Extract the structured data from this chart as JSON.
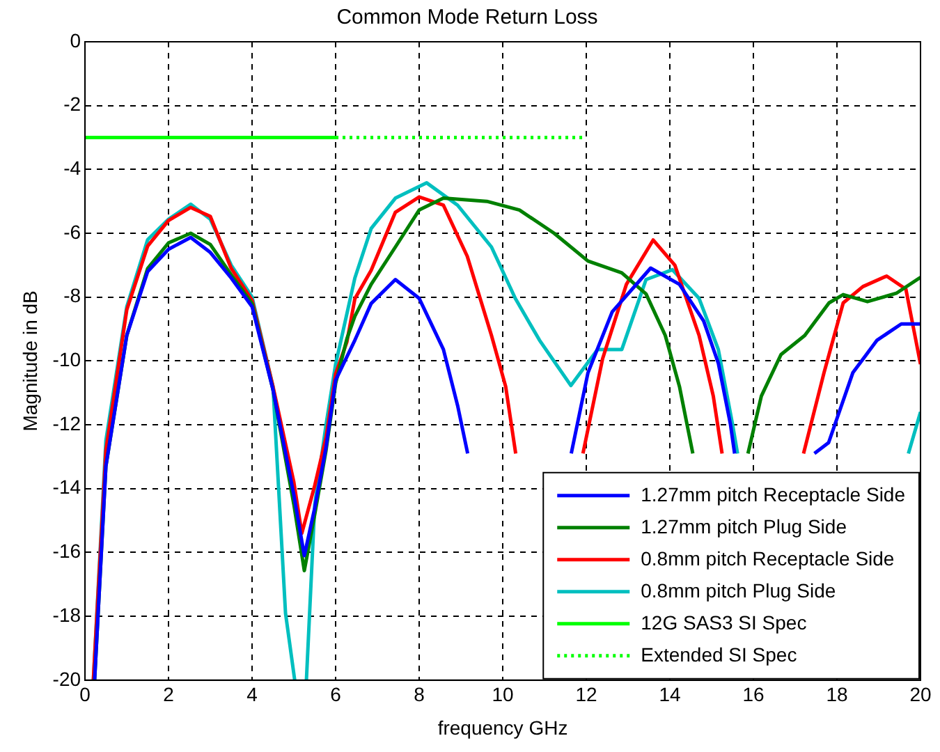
{
  "chart_data": {
    "type": "line",
    "title": "Common Mode Return Loss",
    "xlabel": "frequency GHz",
    "ylabel": "Magnitude in dB",
    "xlim": [
      0,
      20
    ],
    "xticks": [
      0,
      2,
      4,
      6,
      8,
      10,
      12,
      14,
      16,
      18,
      20
    ],
    "ylim": [
      -20,
      0
    ],
    "yticks": [
      0,
      -2,
      -4,
      -6,
      -8,
      -10,
      -12,
      -14,
      -16,
      -18,
      -20
    ],
    "grid": true,
    "legend": "bottom right",
    "marker": "none",
    "series": [
      {
        "name": "1.27mm pitch Receptacle Side",
        "color": "#0000ff",
        "x": [
          0.23,
          0.5,
          1,
          1.5,
          2,
          2.53,
          3,
          3.5,
          4,
          4.5,
          5,
          5.25,
          5.5,
          5.77,
          6,
          6.46,
          6.85,
          7.43,
          8,
          8.58,
          8.92,
          9.16,
          10.4,
          11.64,
          12.04,
          12.62,
          13.54,
          14.23,
          14.81,
          15.16,
          15.45,
          15.55,
          16.5,
          17.46,
          17.8,
          18.38,
          18.96,
          19.54,
          20
        ],
        "values": [
          -20,
          -13.3,
          -9.2,
          -7.2,
          -6.5,
          -6.13,
          -6.6,
          -7.4,
          -8.3,
          -10.9,
          -14.2,
          -16.1,
          -14.6,
          -12.7,
          -10.6,
          -9.35,
          -8.2,
          -7.45,
          -8.04,
          -9.64,
          -11.4,
          -12.9,
          null,
          -12.9,
          -10.37,
          -8.46,
          -7.09,
          -7.6,
          -8.75,
          -10.07,
          -11.98,
          -12.9,
          null,
          -12.9,
          -12.56,
          -10.37,
          -9.35,
          -8.84,
          -8.84
        ]
      },
      {
        "name": "1.27mm pitch Plug Side",
        "color": "#008000",
        "x": [
          0.23,
          0.5,
          1,
          1.5,
          2,
          2.53,
          3,
          3.5,
          4,
          4.5,
          5,
          5.25,
          5.5,
          5.77,
          6,
          6.27,
          6.46,
          6.85,
          7.43,
          8,
          8.58,
          9.62,
          10.4,
          11.23,
          12.04,
          12.85,
          13.43,
          13.89,
          14.23,
          14.55,
          15.2,
          15.87,
          16.19,
          16.66,
          17.23,
          17.81,
          18.15,
          18.73,
          19.42,
          20
        ],
        "values": [
          -20,
          -13.3,
          -9.2,
          -7.1,
          -6.3,
          -6.0,
          -6.35,
          -7.3,
          -8.2,
          -10.9,
          -14.5,
          -16.57,
          -14.8,
          -12.8,
          -10.7,
          -9.3,
          -8.6,
          -7.6,
          -6.43,
          -5.27,
          -4.9,
          -5.0,
          -5.27,
          -6.0,
          -6.87,
          -7.24,
          -7.9,
          -9.2,
          -10.8,
          -12.9,
          null,
          -12.9,
          -11.1,
          -9.8,
          -9.2,
          -8.18,
          -7.92,
          -8.14,
          -7.88,
          -7.38
        ]
      },
      {
        "name": "0.8mm pitch Receptacle Side",
        "color": "#ff0000",
        "x": [
          0.2,
          0.5,
          1,
          1.5,
          2,
          2.53,
          3,
          3.5,
          4,
          4.5,
          5,
          5.19,
          5.5,
          5.77,
          6,
          6.27,
          6.46,
          6.85,
          7.43,
          8,
          8.58,
          9.15,
          9.73,
          10.07,
          10.31,
          11,
          11.92,
          12.39,
          12.96,
          13.6,
          14.12,
          14.7,
          15.04,
          15.25,
          16,
          17.2,
          17.69,
          18.15,
          18.62,
          19.19,
          19.65,
          20
        ],
        "values": [
          -20,
          -12.8,
          -8.4,
          -6.4,
          -5.6,
          -5.19,
          -5.47,
          -7.1,
          -8.1,
          -10.8,
          -13.8,
          -15.4,
          -13.9,
          -12.4,
          -10.4,
          -9.4,
          -8.05,
          -7.16,
          -5.34,
          -4.86,
          -5.12,
          -6.72,
          -9.2,
          -10.8,
          -12.9,
          null,
          -12.9,
          -9.93,
          -7.6,
          -6.21,
          -7.0,
          -9.2,
          -11.1,
          -12.9,
          null,
          -12.9,
          -10.37,
          -8.18,
          -7.67,
          -7.34,
          -7.75,
          -10.1
        ]
      },
      {
        "name": "0.8mm pitch Plug Side",
        "color": "#00bfbf",
        "x": [
          0.2,
          0.5,
          1,
          1.5,
          2,
          2.53,
          3,
          3.5,
          4,
          4.5,
          4.8,
          5.02,
          5.15,
          5.3,
          5.5,
          5.77,
          6,
          6.46,
          6.85,
          7.43,
          8.18,
          8.92,
          9.73,
          10.3,
          10.88,
          11.63,
          12.27,
          12.85,
          13.43,
          14.06,
          14.7,
          15.16,
          15.5,
          15.62,
          17,
          19.71,
          20
        ],
        "values": [
          -20,
          -12.5,
          -8.3,
          -6.2,
          -5.56,
          -5.09,
          -5.56,
          -7.0,
          -8.0,
          -10.8,
          -17.9,
          -20,
          null,
          -20,
          -14.5,
          -12.0,
          -10.1,
          -7.4,
          -5.85,
          -4.9,
          -4.42,
          -5.12,
          -6.43,
          -8.04,
          -9.35,
          -10.77,
          -9.64,
          -9.64,
          -7.45,
          -7.14,
          -8.04,
          -9.64,
          -11.98,
          -12.9,
          null,
          -12.9,
          -11.6
        ]
      },
      {
        "name": "12G SAS3 SI Spec",
        "color": "#00ff00",
        "line_style": "solid",
        "x": [
          0,
          6
        ],
        "values": [
          -3,
          -3
        ]
      },
      {
        "name": "Extended SI Spec",
        "color": "#00ff00",
        "line_style": "dotted",
        "x": [
          6,
          12
        ],
        "values": [
          -3,
          -3
        ]
      }
    ]
  }
}
